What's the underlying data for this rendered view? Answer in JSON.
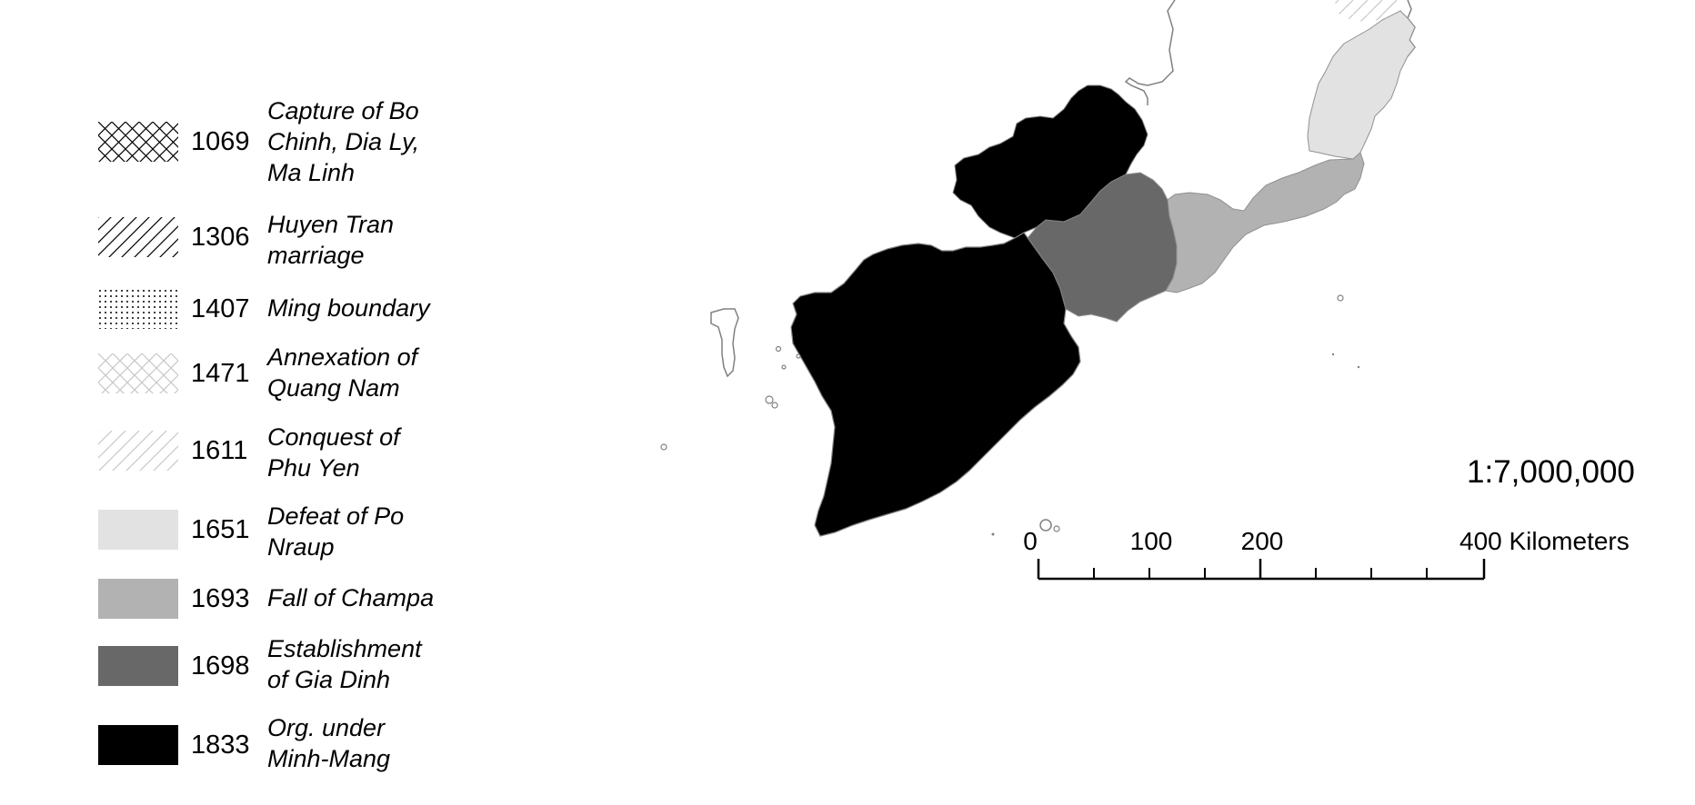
{
  "legend": {
    "items": [
      {
        "year": "1069",
        "label": "Capture of Bo\nChinh, Dia Ly,\nMa Linh",
        "pattern": "crosshatch-dark"
      },
      {
        "year": "1306",
        "label": "Huyen Tran\nmarriage",
        "pattern": "diagonal-dark"
      },
      {
        "year": "1407",
        "label": "Ming boundary",
        "pattern": "dots-dark"
      },
      {
        "year": "1471",
        "label": "Annexation of\nQuang Nam",
        "pattern": "crosshatch-light"
      },
      {
        "year": "1611",
        "label": "Conquest of\nPhu Yen",
        "pattern": "diagonal-light"
      },
      {
        "year": "1651",
        "label": "Defeat of Po\nNraup",
        "pattern": "solid",
        "color": "#e2e2e2"
      },
      {
        "year": "1693",
        "label": "Fall of Champa",
        "pattern": "solid",
        "color": "#b2b2b2"
      },
      {
        "year": "1698",
        "label": "Establishment\nof Gia Dinh",
        "pattern": "solid",
        "color": "#686868"
      },
      {
        "year": "1833",
        "label": "Org. under\nMinh-Mang",
        "pattern": "solid",
        "color": "#000000"
      }
    ]
  },
  "scale": {
    "ratio": "1:7,000,000",
    "tick_labels": [
      "0",
      "100",
      "200",
      "400 Kilometers"
    ]
  },
  "colors": {
    "region_1651": "#e2e2e2",
    "region_1693": "#b2b2b2",
    "region_1698": "#686868",
    "region_1833": "#000000",
    "outline": "#808080"
  }
}
